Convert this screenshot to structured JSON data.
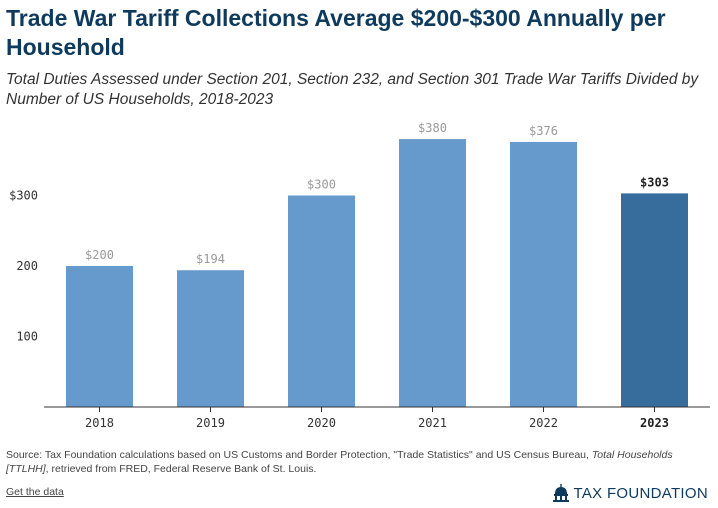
{
  "header": {
    "title": "Trade War Tariff Collections Average $200-$300 Annually per Household",
    "subtitle": "Total Duties Assessed under Section 201, Section 232, and Section 301 Trade War Tariffs Divided by Number of US Households, 2018-2023"
  },
  "chart_data": {
    "type": "bar",
    "categories": [
      "2018",
      "2019",
      "2020",
      "2021",
      "2022",
      "2023"
    ],
    "values": [
      200,
      194,
      300,
      380,
      376,
      303
    ],
    "data_labels": [
      "$200",
      "$194",
      "$300",
      "$380",
      "$376",
      "$303"
    ],
    "highlight_index": 5,
    "ylim": [
      0,
      400
    ],
    "yticks": [
      100,
      200,
      300
    ],
    "ytick_labels": [
      "100",
      "200",
      "$300"
    ],
    "xlabel": "",
    "ylabel": "",
    "grid": false,
    "colors": {
      "bar": "#6699cc",
      "highlight": "#376d9d",
      "axis": "#333333"
    }
  },
  "footer": {
    "source_prefix": "Source: Tax Foundation calculations based on US Customs and Border Protection, \"Trade Statistics\" and US Census Bureau, ",
    "source_italic": "Total Households [TTLHH]",
    "source_suffix": ", retrieved from FRED, Federal Reserve Bank of St. Louis.",
    "get_data": "Get the data",
    "brand": "TAX FOUNDATION",
    "brand_icon": "capitol-dome-icon"
  }
}
